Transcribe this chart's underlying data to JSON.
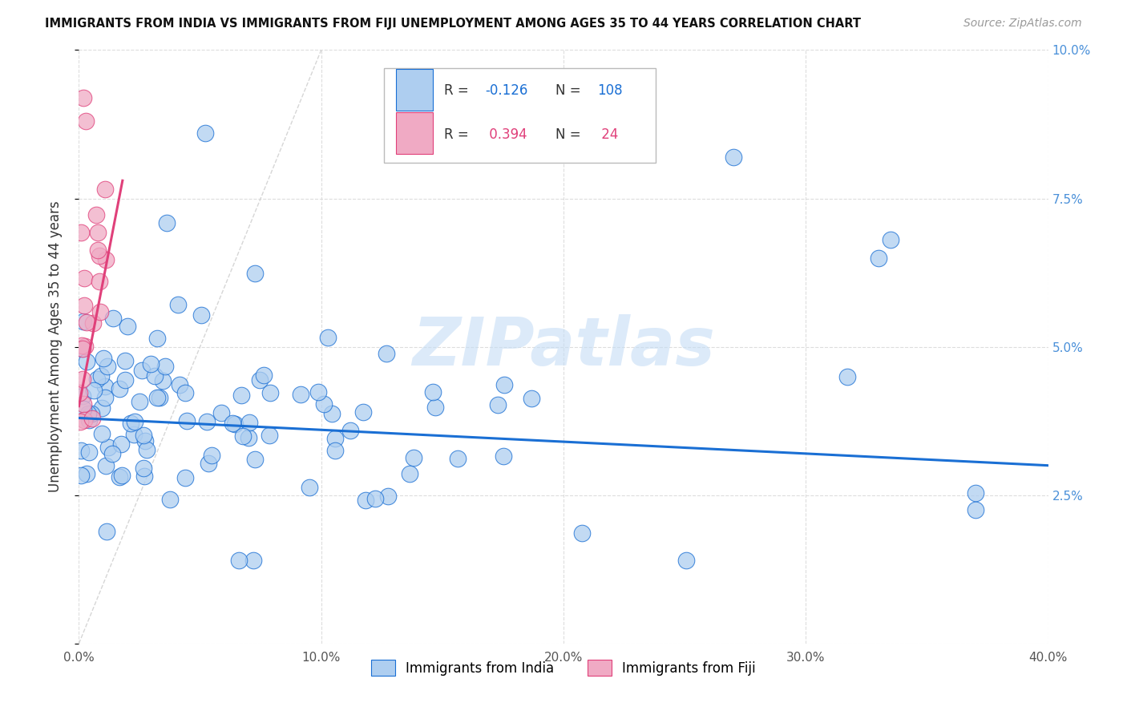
{
  "title": "IMMIGRANTS FROM INDIA VS IMMIGRANTS FROM FIJI UNEMPLOYMENT AMONG AGES 35 TO 44 YEARS CORRELATION CHART",
  "source": "Source: ZipAtlas.com",
  "ylabel": "Unemployment Among Ages 35 to 44 years",
  "xlim": [
    0.0,
    0.4
  ],
  "ylim": [
    0.0,
    0.1
  ],
  "xticks": [
    0.0,
    0.1,
    0.2,
    0.3,
    0.4
  ],
  "yticks_right": [
    0.025,
    0.05,
    0.075,
    0.1
  ],
  "xticklabels": [
    "0.0%",
    "10.0%",
    "20.0%",
    "30.0%",
    "40.0%"
  ],
  "yticklabels_right": [
    "2.5%",
    "5.0%",
    "7.5%",
    "10.0%"
  ],
  "legend_india": "Immigrants from India",
  "legend_fiji": "Immigrants from Fiji",
  "R_india": -0.126,
  "N_india": 108,
  "R_fiji": 0.394,
  "N_fiji": 24,
  "color_india": "#aecef0",
  "color_fiji": "#f0aac4",
  "color_india_line": "#1a6fd4",
  "color_fiji_line": "#e0407a",
  "color_diagonal": "#cccccc",
  "india_trend_x": [
    0.0,
    0.4
  ],
  "india_trend_y": [
    0.038,
    0.03
  ],
  "fiji_trend_x": [
    0.0,
    0.018
  ],
  "fiji_trend_y": [
    0.04,
    0.078
  ],
  "watermark": "ZIPatlas",
  "watermark_color": "#c5ddf5",
  "background_color": "#ffffff",
  "grid_color": "#dddddd"
}
